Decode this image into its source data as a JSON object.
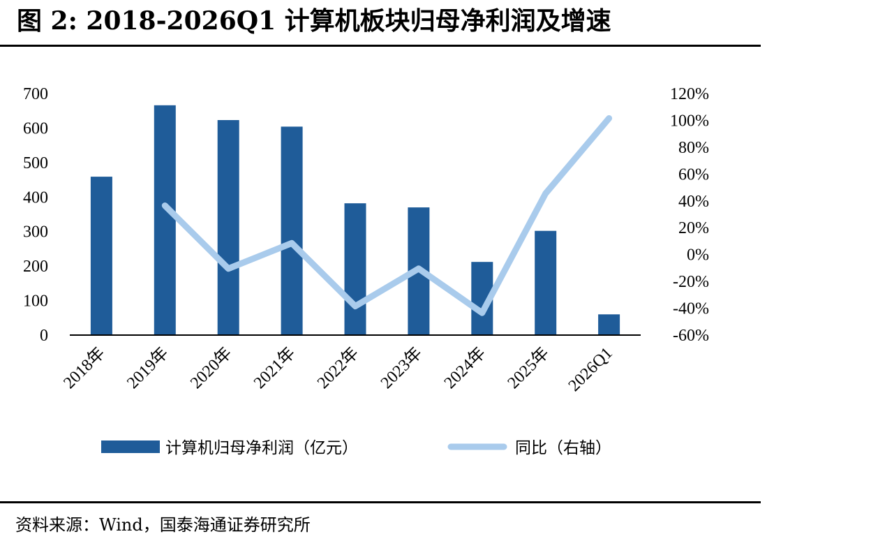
{
  "title": "图 2:  2018-2026Q1 计算机板块归母净利润及增速",
  "source": "资料来源：Wind，国泰海通证券研究所",
  "colors": {
    "bar": "#1f5c99",
    "line": "#a9cbec",
    "axis": "#000000"
  },
  "chart_data": {
    "type": "bar",
    "categories": [
      "2018年",
      "2019年",
      "2020年",
      "2021年",
      "2022年",
      "2023年",
      "2024年",
      "2025年",
      "2026Q1"
    ],
    "series": [
      {
        "name": "计算机归母净利润（亿元）",
        "type": "bar",
        "axis": "left",
        "values": [
          457,
          664,
          621,
          602,
          380,
          368,
          210,
          300,
          58
        ]
      },
      {
        "name": "同比（右轴）",
        "type": "line",
        "axis": "right",
        "values": [
          null,
          0.36,
          -0.11,
          0.08,
          -0.39,
          -0.11,
          -0.44,
          0.45,
          1.01
        ]
      }
    ],
    "y_left": {
      "min": 0,
      "max": 700,
      "ticks": [
        "0",
        "100",
        "200",
        "300",
        "400",
        "500",
        "600",
        "700"
      ]
    },
    "y_right": {
      "min": -0.6,
      "max": 1.2,
      "ticks": [
        "-60%",
        "-40%",
        "-20%",
        "0%",
        "20%",
        "40%",
        "60%",
        "80%",
        "100%",
        "120%"
      ]
    },
    "legend_position": "bottom",
    "grid": false
  }
}
